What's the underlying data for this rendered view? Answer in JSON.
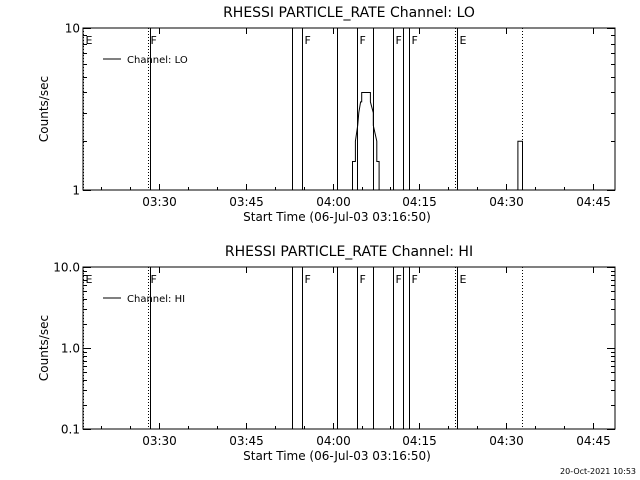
{
  "timestamp": "20-Oct-2021 10:53",
  "chart_data": [
    {
      "type": "line",
      "title": "RHESSI PARTICLE_RATE Channel: LO",
      "xlabel": "Start Time (06-Jul-03 03:16:50)",
      "ylabel": "Counts/sec",
      "yscale": "log",
      "xlim_minutes": [
        0,
        92
      ],
      "ylim": [
        1,
        10
      ],
      "x_ticks": [
        {
          "minute": 13.17,
          "label": "03:30"
        },
        {
          "minute": 28.17,
          "label": "03:45"
        },
        {
          "minute": 43.17,
          "label": "04:00"
        },
        {
          "minute": 58.17,
          "label": "04:15"
        },
        {
          "minute": 73.17,
          "label": "04:30"
        },
        {
          "minute": 88.17,
          "label": "04:45"
        }
      ],
      "y_ticks": [
        {
          "value": 1,
          "label": "1"
        },
        {
          "value": 10,
          "label": "10"
        }
      ],
      "legend": {
        "position": "top-left",
        "entries": [
          "Channel: LO"
        ]
      },
      "event_lines": [
        {
          "minute": 0.0,
          "label": "E",
          "style": "dotted"
        },
        {
          "minute": 11.3,
          "label": "F",
          "style": "dotted"
        },
        {
          "minute": 11.5,
          "label": "",
          "style": "solid"
        },
        {
          "minute": 36.1,
          "label": "",
          "style": "solid"
        },
        {
          "minute": 37.9,
          "label": "F",
          "style": "solid"
        },
        {
          "minute": 44.0,
          "label": "",
          "style": "solid"
        },
        {
          "minute": 47.4,
          "label": "F",
          "style": "solid"
        },
        {
          "minute": 50.2,
          "label": "",
          "style": "solid"
        },
        {
          "minute": 53.6,
          "label": "F",
          "style": "solid"
        },
        {
          "minute": 55.3,
          "label": "",
          "style": "solid"
        },
        {
          "minute": 56.3,
          "label": "F",
          "style": "solid"
        },
        {
          "minute": 64.4,
          "label": "",
          "style": "dotted"
        },
        {
          "minute": 64.6,
          "label": "E",
          "style": "solid"
        },
        {
          "minute": 76.0,
          "label": "",
          "style": "dotted"
        }
      ],
      "series": [
        {
          "name": "Channel: LO",
          "x_minutes": [
            46.4,
            46.6,
            46.6,
            47.1,
            47.1,
            47.5,
            47.7,
            48.0,
            48.2,
            48.2,
            49.7,
            49.7,
            50.2,
            50.2,
            50.8,
            50.8,
            51.2,
            51.2,
            51.6
          ],
          "values": [
            1,
            1,
            1.5,
            1.5,
            2.0,
            2.5,
            3.0,
            3.5,
            3.5,
            4.0,
            4.0,
            3.5,
            3.0,
            2.5,
            2.0,
            1.5,
            1.5,
            1.0,
            1.0
          ]
        },
        {
          "name": "Channel: LO",
          "x_minutes": [
            75.0,
            75.2,
            75.2,
            76.0,
            76.0,
            76.2
          ],
          "values": [
            1,
            1,
            2.0,
            2.0,
            1,
            1
          ]
        }
      ]
    },
    {
      "type": "line",
      "title": "RHESSI PARTICLE_RATE Channel: HI",
      "xlabel": "Start Time (06-Jul-03 03:16:50)",
      "ylabel": "Counts/sec",
      "yscale": "log",
      "xlim_minutes": [
        0,
        92
      ],
      "ylim": [
        0.1,
        10
      ],
      "x_ticks": [
        {
          "minute": 13.17,
          "label": "03:30"
        },
        {
          "minute": 28.17,
          "label": "03:45"
        },
        {
          "minute": 43.17,
          "label": "04:00"
        },
        {
          "minute": 58.17,
          "label": "04:15"
        },
        {
          "minute": 73.17,
          "label": "04:30"
        },
        {
          "minute": 88.17,
          "label": "04:45"
        }
      ],
      "y_ticks": [
        {
          "value": 0.1,
          "label": "0.1"
        },
        {
          "value": 1,
          "label": "1.0"
        },
        {
          "value": 10,
          "label": "10.0"
        }
      ],
      "legend": {
        "position": "top-left",
        "entries": [
          "Channel: HI"
        ]
      },
      "event_lines": [
        {
          "minute": 0.0,
          "label": "E",
          "style": "dotted"
        },
        {
          "minute": 11.3,
          "label": "F",
          "style": "dotted"
        },
        {
          "minute": 11.5,
          "label": "",
          "style": "solid"
        },
        {
          "minute": 36.1,
          "label": "",
          "style": "solid"
        },
        {
          "minute": 37.9,
          "label": "F",
          "style": "solid"
        },
        {
          "minute": 44.0,
          "label": "",
          "style": "solid"
        },
        {
          "minute": 47.4,
          "label": "F",
          "style": "solid"
        },
        {
          "minute": 50.2,
          "label": "",
          "style": "solid"
        },
        {
          "minute": 53.6,
          "label": "F",
          "style": "solid"
        },
        {
          "minute": 55.3,
          "label": "",
          "style": "solid"
        },
        {
          "minute": 56.3,
          "label": "F",
          "style": "solid"
        },
        {
          "minute": 64.4,
          "label": "",
          "style": "dotted"
        },
        {
          "minute": 64.6,
          "label": "E",
          "style": "solid"
        },
        {
          "minute": 76.0,
          "label": "",
          "style": "dotted"
        }
      ],
      "series": []
    }
  ]
}
